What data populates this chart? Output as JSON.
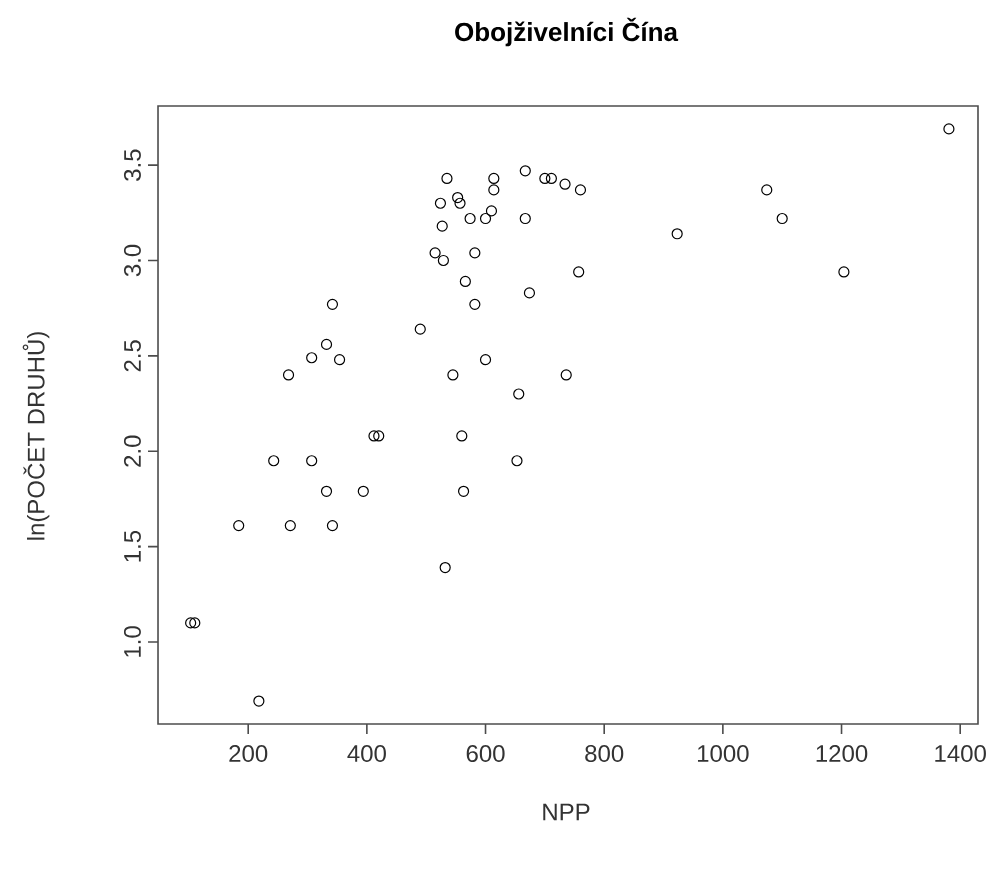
{
  "chart_data": {
    "type": "scatter",
    "title": "Obojživelníci Čína",
    "xlabel": "NPP",
    "ylabel": "ln(POČET DRUHŮ)",
    "x": [
      103,
      110,
      218,
      184,
      243,
      271,
      307,
      268,
      307,
      332,
      354,
      342,
      332,
      342,
      394,
      412,
      420,
      490,
      532,
      535,
      524,
      527,
      515,
      529,
      553,
      557,
      566,
      582,
      582,
      574,
      600,
      614,
      614,
      610,
      545,
      600,
      560,
      563,
      653,
      656,
      667,
      700,
      711,
      734,
      760,
      667,
      923,
      1074,
      1100,
      757,
      1204,
      1381,
      674,
      736
    ],
    "values": [
      1.1,
      1.1,
      0.69,
      1.61,
      1.95,
      1.61,
      1.95,
      2.4,
      2.49,
      2.56,
      2.48,
      2.77,
      1.79,
      1.61,
      1.79,
      2.08,
      2.08,
      2.64,
      1.39,
      3.43,
      3.3,
      3.18,
      3.04,
      3.0,
      3.33,
      3.3,
      2.89,
      3.04,
      2.77,
      3.22,
      3.22,
      3.43,
      3.37,
      3.26,
      2.4,
      2.48,
      2.08,
      1.79,
      1.95,
      2.3,
      3.47,
      3.43,
      3.43,
      3.4,
      3.37,
      3.22,
      3.14,
      3.37,
      3.22,
      2.94,
      2.94,
      3.69,
      2.83,
      2.4
    ],
    "color": "#000000",
    "marker": "circle",
    "xlim": [
      48,
      1430
    ],
    "ylim": [
      0.57,
      3.81
    ],
    "xticks": [
      200,
      400,
      600,
      800,
      1000,
      1200,
      1400
    ],
    "yticks": [
      {
        "value": 1,
        "label": "1.0"
      },
      {
        "value": 1.5,
        "label": "1.5"
      },
      {
        "value": 2,
        "label": "2.0"
      },
      {
        "value": 2.5,
        "label": "2.5"
      },
      {
        "value": 3,
        "label": "3.0"
      },
      {
        "value": 3.5,
        "label": "3.5"
      }
    ]
  }
}
